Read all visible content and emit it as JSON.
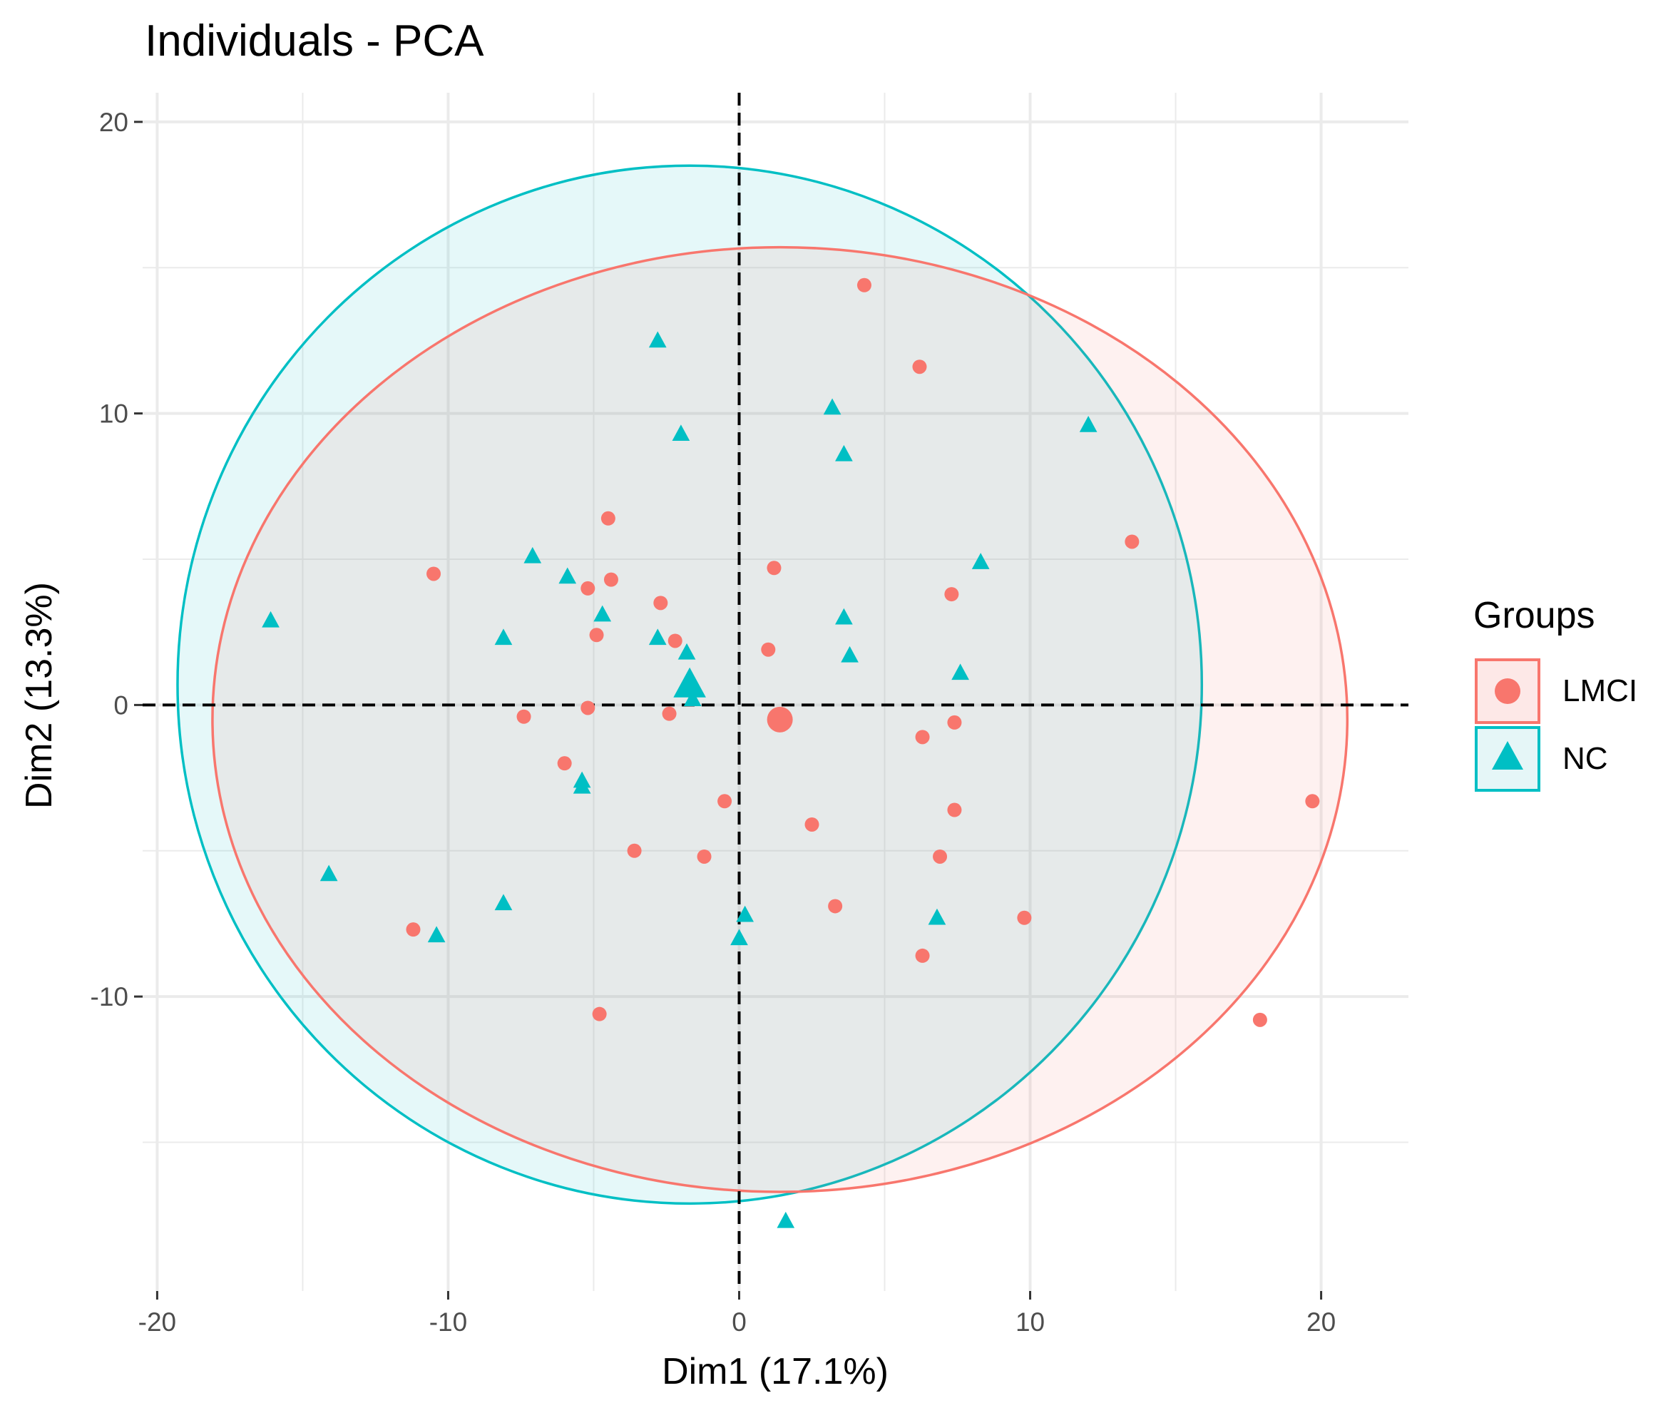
{
  "chart_data": {
    "type": "scatter",
    "title": "Individuals - PCA",
    "xlabel": "Dim1 (17.1%)",
    "ylabel": "Dim2 (13.3%)",
    "xlim": [
      -20.5,
      23
    ],
    "ylim": [
      -20.1,
      21
    ],
    "xticks": [
      -20,
      -10,
      0,
      10,
      20
    ],
    "xtick_labels": [
      "-20",
      "-10",
      "0",
      "10",
      "20"
    ],
    "yticks": [
      -10,
      0,
      10,
      20
    ],
    "ytick_labels": [
      "-10",
      "0",
      "10",
      "20"
    ],
    "grid": true,
    "reference_lines": {
      "x": 0,
      "y": 0,
      "style": "dashed"
    },
    "legend": {
      "title": "Groups",
      "position": "right"
    },
    "series": [
      {
        "name": "LMCI",
        "shape": "circle",
        "color": "#F8766D",
        "fill_color": "#FDE8E7",
        "centroid": [
          1.4,
          -0.5
        ],
        "ellipse": {
          "center": [
            1.4,
            -0.5
          ],
          "rx": 19.5,
          "ry": 16.2
        },
        "points": [
          [
            4.3,
            14.4
          ],
          [
            6.2,
            11.6
          ],
          [
            13.5,
            5.6
          ],
          [
            1.2,
            4.7
          ],
          [
            7.3,
            3.8
          ],
          [
            1.0,
            1.9
          ],
          [
            7.4,
            -0.6
          ],
          [
            6.3,
            -1.1
          ],
          [
            7.4,
            -3.6
          ],
          [
            2.5,
            -4.1
          ],
          [
            6.9,
            -5.2
          ],
          [
            3.3,
            -6.9
          ],
          [
            9.8,
            -7.3
          ],
          [
            6.3,
            -8.6
          ],
          [
            -0.5,
            -3.3
          ],
          [
            -1.2,
            -5.2
          ],
          [
            -3.6,
            -5.0
          ],
          [
            -2.2,
            2.2
          ],
          [
            -2.4,
            -0.3
          ],
          [
            -2.7,
            3.5
          ],
          [
            -4.4,
            4.3
          ],
          [
            -4.5,
            6.4
          ],
          [
            -5.2,
            4.0
          ],
          [
            -4.9,
            2.4
          ],
          [
            -5.2,
            -0.1
          ],
          [
            -6.0,
            -2.0
          ],
          [
            -7.4,
            -0.4
          ],
          [
            -10.5,
            4.5
          ],
          [
            -11.2,
            -7.7
          ],
          [
            -4.8,
            -10.6
          ],
          [
            17.9,
            -10.8
          ],
          [
            19.7,
            -3.3
          ]
        ]
      },
      {
        "name": "NC",
        "shape": "triangle",
        "color": "#00BFC4",
        "fill_color": "#E5F6F7",
        "centroid": [
          -1.7,
          0.7
        ],
        "ellipse": {
          "center": [
            -1.7,
            0.7
          ],
          "rx": 17.6,
          "ry": 17.8
        },
        "points": [
          [
            -2.8,
            12.5
          ],
          [
            -2.0,
            9.3
          ],
          [
            3.2,
            10.2
          ],
          [
            3.6,
            8.6
          ],
          [
            12.0,
            9.6
          ],
          [
            8.3,
            4.9
          ],
          [
            3.6,
            3.0
          ],
          [
            3.8,
            1.7
          ],
          [
            7.6,
            1.1
          ],
          [
            -1.6,
            0.2
          ],
          [
            -1.8,
            1.8
          ],
          [
            -2.8,
            2.3
          ],
          [
            -7.1,
            5.1
          ],
          [
            -5.9,
            4.4
          ],
          [
            -4.7,
            3.1
          ],
          [
            -8.1,
            2.3
          ],
          [
            -16.1,
            2.9
          ],
          [
            -5.4,
            -2.6
          ],
          [
            -5.4,
            -2.8
          ],
          [
            -14.1,
            -5.8
          ],
          [
            -8.1,
            -6.8
          ],
          [
            -10.4,
            -7.9
          ],
          [
            0.2,
            -7.2
          ],
          [
            0.0,
            -8.0
          ],
          [
            6.8,
            -7.3
          ],
          [
            1.6,
            -17.7
          ]
        ]
      }
    ]
  }
}
